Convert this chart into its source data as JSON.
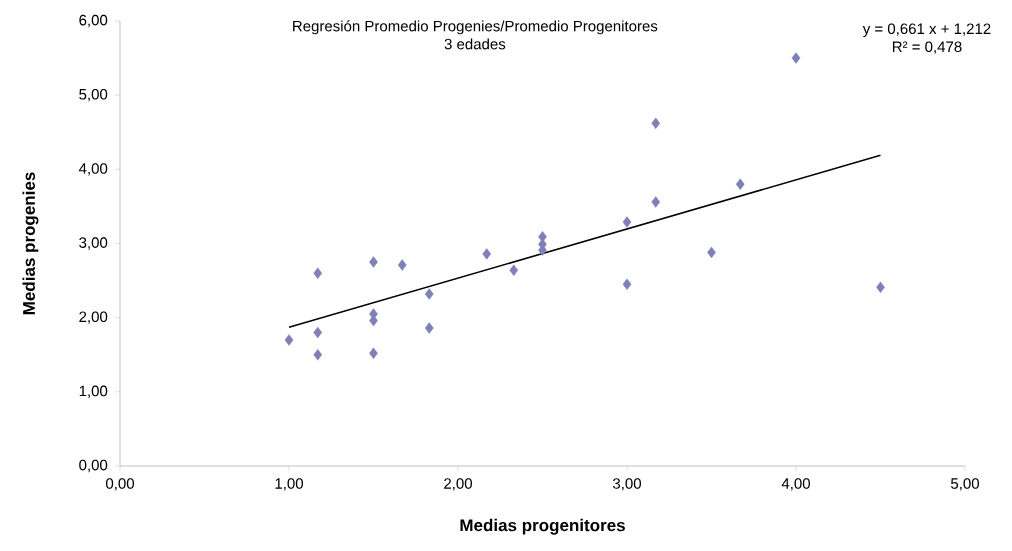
{
  "chart_data": {
    "type": "scatter",
    "title": "Regresión Promedio Progenies/Promedio Progenitores",
    "subtitle": "3 edades",
    "xlabel": "Medias progenitores",
    "ylabel": "Medias progenies",
    "annotations": [
      "y = 0,661 x + 1,212",
      "R² = 0,478"
    ],
    "marker": "diamond",
    "grid": false,
    "xlim": [
      0,
      5
    ],
    "ylim": [
      0,
      6
    ],
    "xticks": [
      {
        "value": 0,
        "label": "0,00"
      },
      {
        "value": 1,
        "label": "1,00"
      },
      {
        "value": 2,
        "label": "2,00"
      },
      {
        "value": 3,
        "label": "3,00"
      },
      {
        "value": 4,
        "label": "4,00"
      },
      {
        "value": 5,
        "label": "5,00"
      }
    ],
    "yticks": [
      {
        "value": 0,
        "label": "0,00"
      },
      {
        "value": 1,
        "label": "1,00"
      },
      {
        "value": 2,
        "label": "2,00"
      },
      {
        "value": 3,
        "label": "3,00"
      },
      {
        "value": 4,
        "label": "4,00"
      },
      {
        "value": 5,
        "label": "5,00"
      },
      {
        "value": 6,
        "label": "6,00"
      }
    ],
    "series": [
      {
        "color": "#7f80b8",
        "x": [
          1.0,
          1.17,
          1.17,
          1.17,
          1.5,
          1.5,
          1.5,
          1.5,
          1.67,
          1.83,
          1.83,
          2.17,
          2.33,
          2.5,
          2.5,
          2.5,
          3.0,
          3.0,
          3.17,
          3.17,
          3.5,
          3.67,
          4.0,
          4.5
        ],
        "values": [
          1.7,
          2.6,
          1.8,
          1.5,
          2.75,
          2.05,
          1.96,
          1.52,
          2.71,
          2.32,
          1.86,
          2.86,
          2.64,
          3.09,
          2.99,
          2.91,
          3.29,
          2.45,
          4.62,
          3.56,
          2.88,
          3.8,
          5.5,
          2.41
        ]
      },
      {
        "type": "line",
        "marker": "none",
        "color": "#000000",
        "x": [
          1.0,
          4.5
        ],
        "values": [
          1.87,
          4.19
        ]
      }
    ]
  }
}
